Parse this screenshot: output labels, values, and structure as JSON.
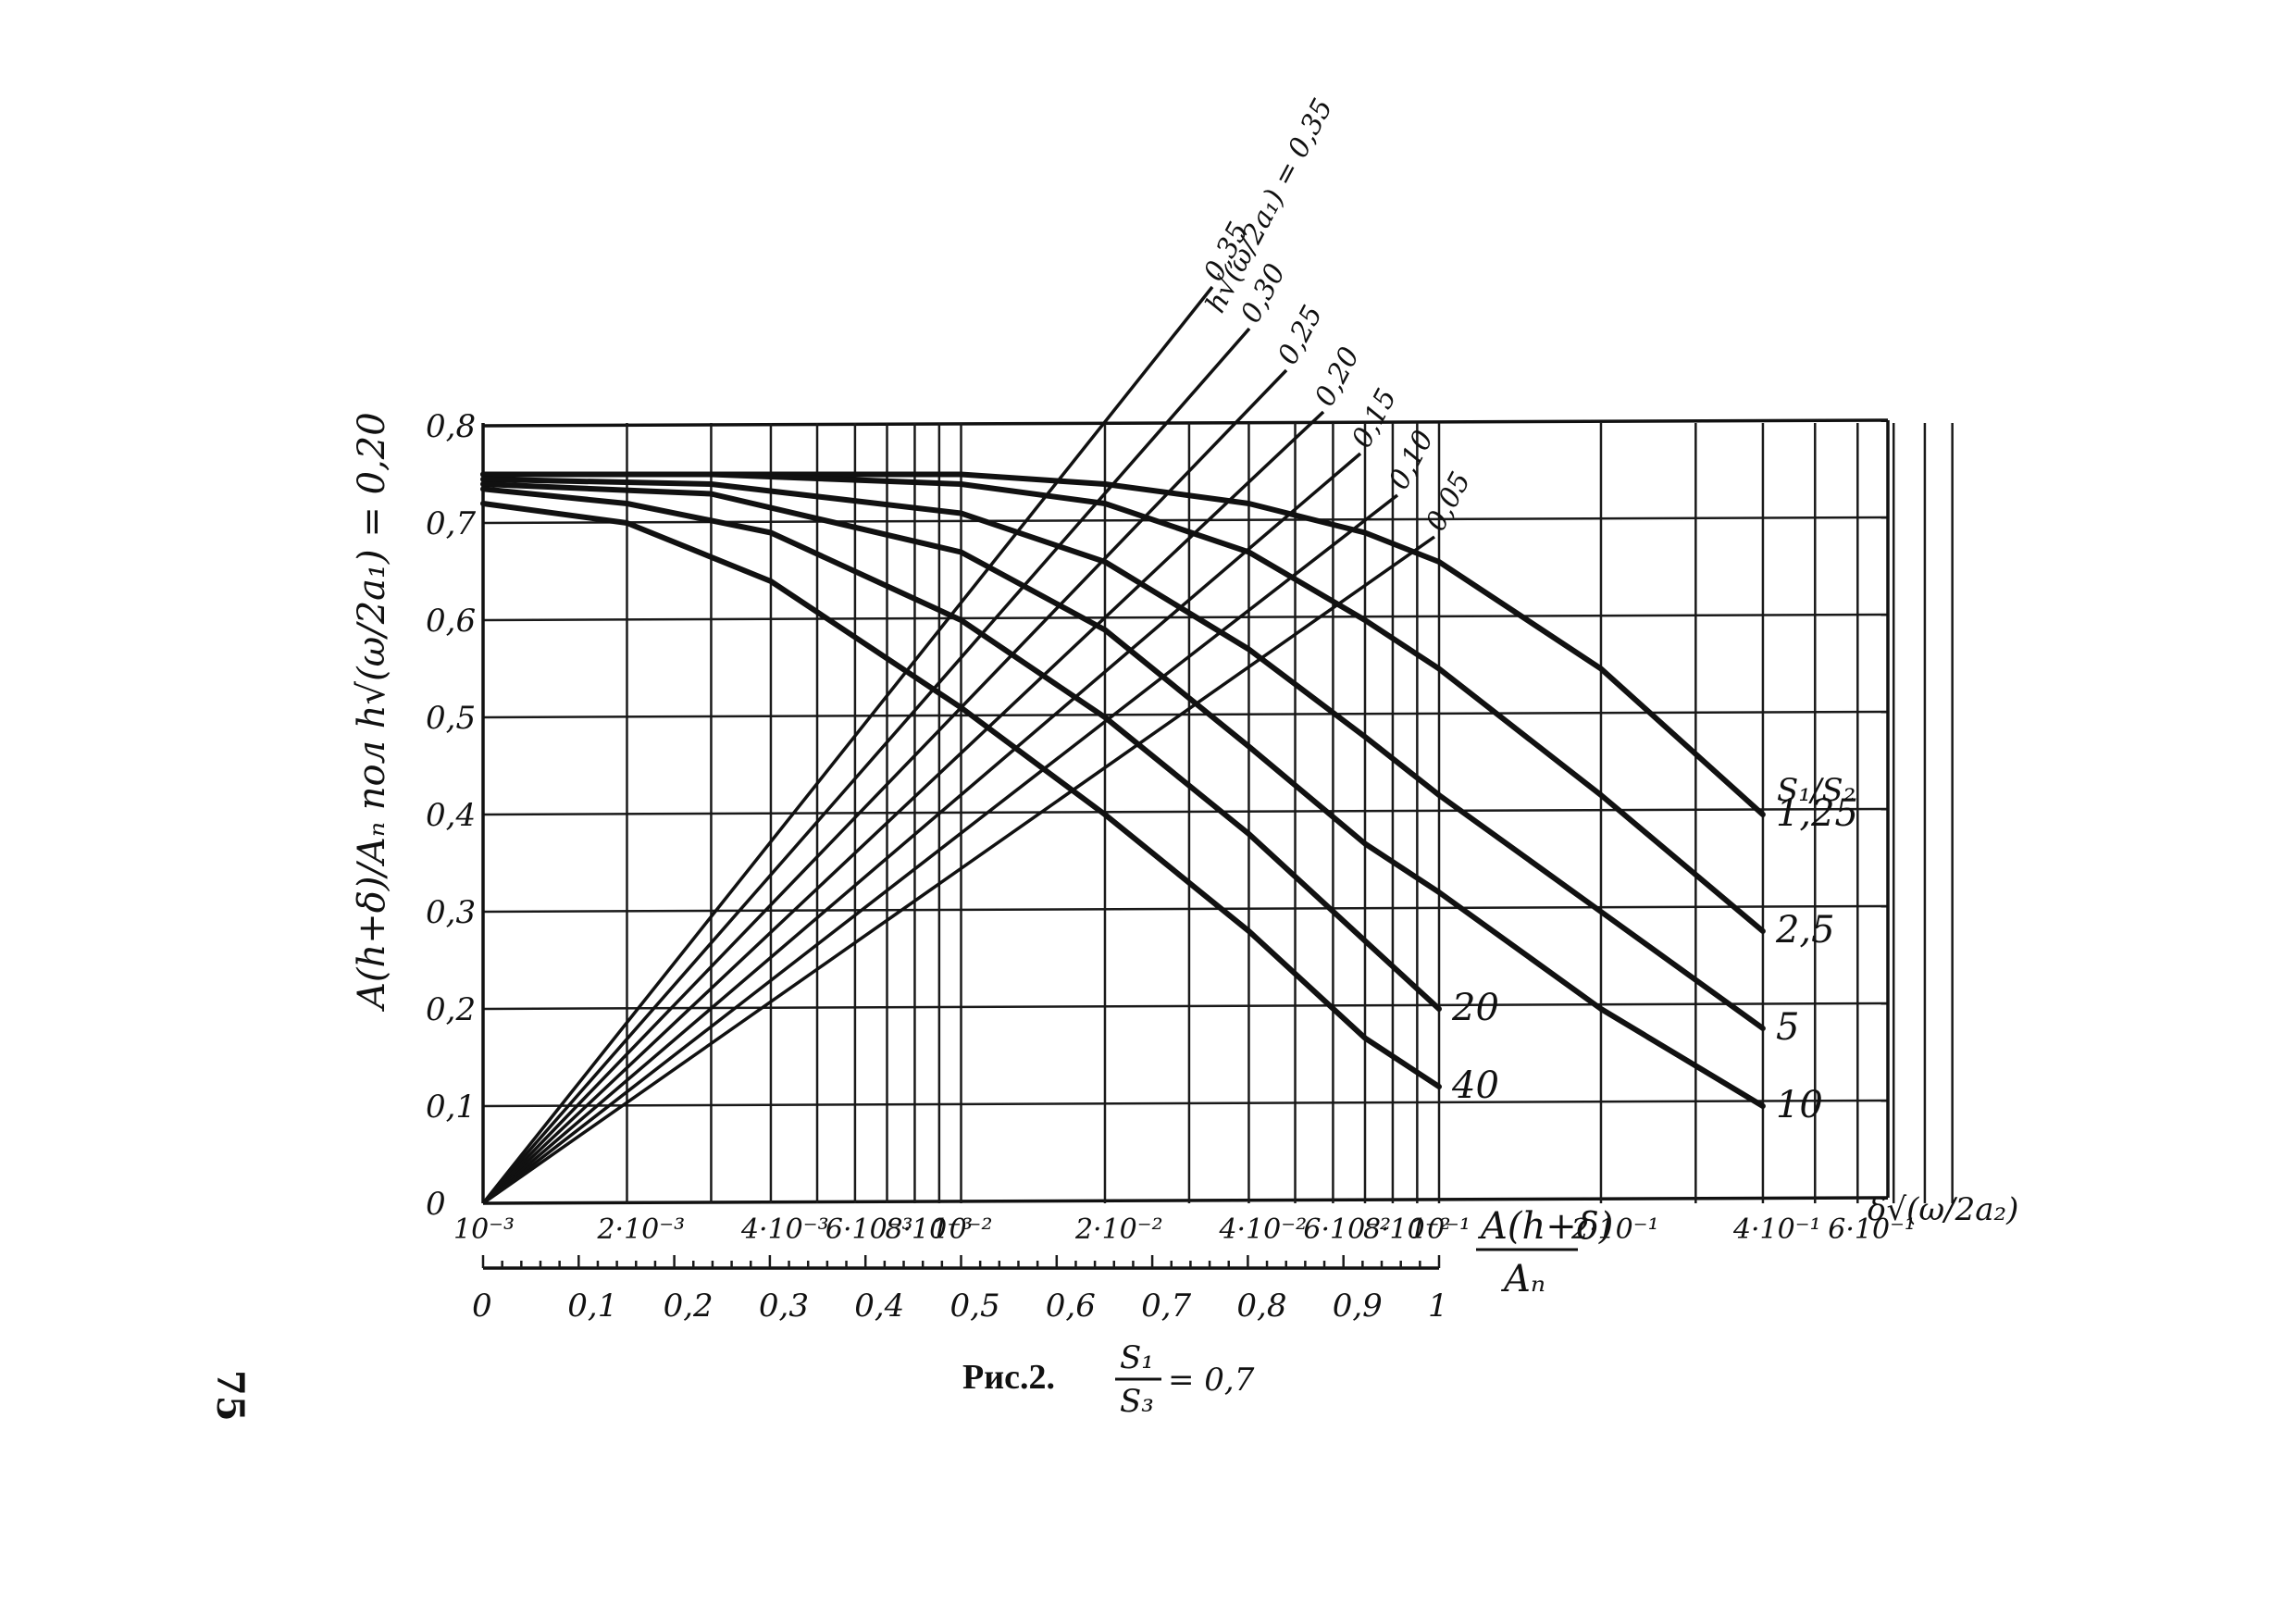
{
  "page_number": "75",
  "caption": {
    "label": "Рис.2.",
    "ratio_num": "S₁",
    "ratio_den": "S₃",
    "ratio_value": "= 0,7"
  },
  "chart_data": {
    "type": "line",
    "title": "",
    "x_scale": "log",
    "xlabel_num": "A(h+δ)",
    "xlabel_den": "Aₙ",
    "x_right_label": "δ√(ω/2a₂)",
    "ylabel": "A(h+δ)/Aₙ пол  h√(ω/2a₁) = 0,20",
    "ylim": [
      0,
      0.8
    ],
    "xlim": [
      0.001,
      1.0
    ],
    "y_ticks": [
      "0",
      "0,1",
      "0,2",
      "0,3",
      "0,4",
      "0,5",
      "0,6",
      "0,7",
      "0,8"
    ],
    "x_ticks_top": [
      "10⁻³",
      "2·10⁻³",
      "4·10⁻³",
      "6·10⁻³",
      "8·10⁻³",
      "10⁻²",
      "2·10⁻²",
      "4·10⁻²",
      "6·10⁻²",
      "8·10⁻²",
      "10⁻¹",
      "2·10⁻¹",
      "4·10⁻¹",
      "6·10⁻¹"
    ],
    "x_ticks_bottom": [
      "0",
      "0,1",
      "0,2",
      "0,3",
      "0,4",
      "0,5",
      "0,6",
      "0,7",
      "0,8",
      "0,9",
      "1"
    ],
    "legend_label": "S₁/S₂",
    "series": [
      {
        "name": "1,25",
        "x": [
          0.001,
          0.003,
          0.01,
          0.02,
          0.04,
          0.07,
          0.1,
          0.2,
          0.4
        ],
        "y": [
          0.75,
          0.75,
          0.75,
          0.74,
          0.72,
          0.69,
          0.66,
          0.55,
          0.4
        ]
      },
      {
        "name": "2,5",
        "x": [
          0.001,
          0.003,
          0.01,
          0.02,
          0.04,
          0.07,
          0.1,
          0.2,
          0.4
        ],
        "y": [
          0.75,
          0.75,
          0.74,
          0.72,
          0.67,
          0.6,
          0.55,
          0.42,
          0.28
        ]
      },
      {
        "name": "5",
        "x": [
          0.001,
          0.003,
          0.01,
          0.02,
          0.04,
          0.07,
          0.1,
          0.2,
          0.4
        ],
        "y": [
          0.745,
          0.74,
          0.71,
          0.66,
          0.57,
          0.48,
          0.42,
          0.3,
          0.18
        ]
      },
      {
        "name": "10",
        "x": [
          0.001,
          0.003,
          0.01,
          0.02,
          0.04,
          0.07,
          0.1,
          0.2,
          0.4
        ],
        "y": [
          0.74,
          0.73,
          0.67,
          0.59,
          0.47,
          0.37,
          0.32,
          0.2,
          0.1
        ]
      },
      {
        "name": "20",
        "x": [
          0.001,
          0.002,
          0.004,
          0.01,
          0.02,
          0.04,
          0.07,
          0.1
        ],
        "y": [
          0.735,
          0.72,
          0.69,
          0.6,
          0.5,
          0.38,
          0.27,
          0.2
        ]
      },
      {
        "name": "40",
        "x": [
          0.001,
          0.002,
          0.004,
          0.01,
          0.02,
          0.04,
          0.07,
          0.1
        ],
        "y": [
          0.72,
          0.7,
          0.64,
          0.51,
          0.4,
          0.28,
          0.17,
          0.12
        ]
      }
    ],
    "h_family_label": "h√(ω/2a₁) = 0,35",
    "h_family": [
      "0,35",
      "0,30",
      "0,25",
      "0,20",
      "0,15",
      "0,10",
      "0,05"
    ]
  }
}
